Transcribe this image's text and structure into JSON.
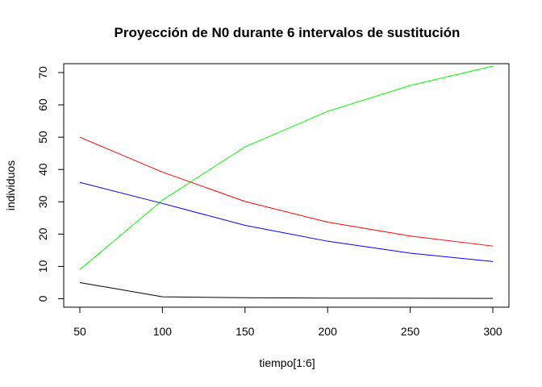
{
  "chart_data": {
    "type": "line",
    "title": "Proyección de N0 durante 6 intervalos de sustitución",
    "xlabel": "tiempo[1:6]",
    "ylabel": "individuos",
    "x": [
      50,
      100,
      150,
      200,
      250,
      300
    ],
    "xlim": [
      50,
      300
    ],
    "ylim": [
      0,
      72
    ],
    "xticks": [
      50,
      100,
      150,
      200,
      250,
      300
    ],
    "yticks": [
      0,
      10,
      20,
      30,
      40,
      50,
      60,
      70
    ],
    "xtick_labels": [
      "50",
      "100",
      "150",
      "200",
      "250",
      "300"
    ],
    "ytick_labels": [
      "0",
      "10",
      "20",
      "30",
      "40",
      "50",
      "60",
      "70"
    ],
    "grid": false,
    "legend": "none",
    "series": [
      {
        "color": "#000000",
        "values": [
          5,
          0.6,
          0.3,
          0.2,
          0.15,
          0.1
        ]
      },
      {
        "color": "#00ff00",
        "values": [
          9,
          30.5,
          47,
          58,
          66,
          72
        ]
      },
      {
        "color": "#ff0000",
        "values": [
          50,
          39.2,
          30.1,
          23.7,
          19.4,
          16.3
        ]
      },
      {
        "color": "#0000ff",
        "values": [
          36,
          29.5,
          22.7,
          17.8,
          14.1,
          11.5
        ]
      }
    ]
  }
}
